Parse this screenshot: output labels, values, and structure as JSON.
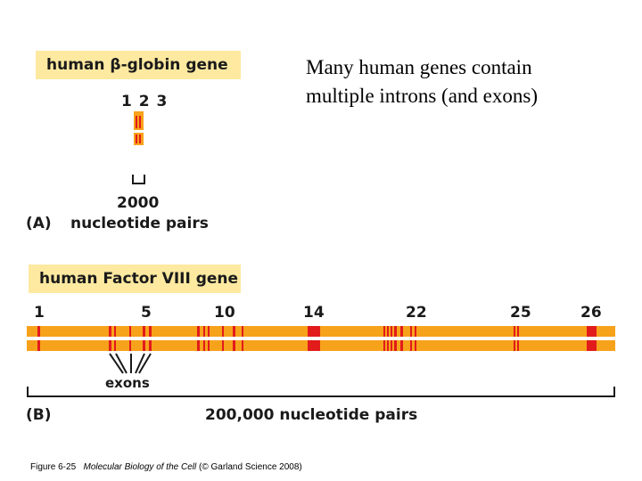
{
  "title_block": {
    "line1": "Many human genes contain",
    "line2": "multiple introns (and exons)"
  },
  "panel_a": {
    "gene_label": "human β-globin gene",
    "exon_numbers": "1 2 3",
    "scale_value": "2000",
    "scale_unit": "nucleotide pairs",
    "panel_letter": "(A)"
  },
  "panel_b": {
    "gene_label": "human Factor VIII gene",
    "exon_numbers": [
      "1",
      "5",
      "10",
      "14",
      "22",
      "25",
      "26"
    ],
    "exons_label": "exons",
    "scale_label": "200,000 nucleotide pairs",
    "panel_letter": "(B)"
  },
  "caption": {
    "figure": "Figure 6-25",
    "book": "Molecular Biology of the Cell",
    "credit": "(© Garland Science 2008)"
  },
  "colors": {
    "label_box": "#fde9a0",
    "intron": "#f7a21b",
    "exon": "#e21b1b"
  }
}
